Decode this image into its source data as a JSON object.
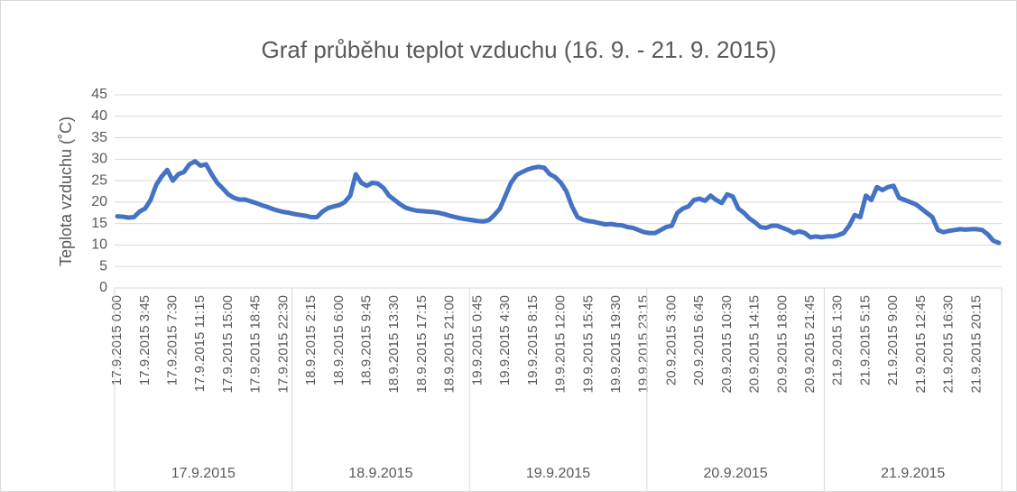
{
  "chart_data": {
    "type": "line",
    "title": "Graf průběhu teplot vzduchu (16. 9. - 21. 9. 2015)",
    "y_label": "Teplota vzduchu (˚C)",
    "ylim": [
      0,
      45
    ],
    "yticks": [
      0,
      5,
      10,
      15,
      20,
      25,
      30,
      35,
      40,
      45
    ],
    "grid": true,
    "x_groups": [
      "17.9.2015",
      "18.9.2015",
      "19.9.2015",
      "20.9.2015",
      "21.9.2015"
    ],
    "categories": [
      "17.9.2015 0:00",
      null,
      null,
      null,
      null,
      "17.9.2015 3:45",
      null,
      null,
      null,
      null,
      "17.9.2015 7:30",
      null,
      null,
      null,
      null,
      "17.9.2015 11:15",
      null,
      null,
      null,
      null,
      "17.9.2015 15:00",
      null,
      null,
      null,
      null,
      "17.9.2015 18:45",
      null,
      null,
      null,
      null,
      "17.9.2015 22:30",
      null,
      null,
      null,
      null,
      "18.9.2015 2:15",
      null,
      null,
      null,
      null,
      "18.9.2015 6:00",
      null,
      null,
      null,
      null,
      "18.9.2015 9:45",
      null,
      null,
      null,
      null,
      "18.9.2015 13:30",
      null,
      null,
      null,
      null,
      "18.9.2015 17:15",
      null,
      null,
      null,
      null,
      "18.9.2015 21:00",
      null,
      null,
      null,
      null,
      "19.9.2015 0:45",
      null,
      null,
      null,
      null,
      "19.9.2015 4:30",
      null,
      null,
      null,
      null,
      "19.9.2015 8:15",
      null,
      null,
      null,
      null,
      "19.9.2015 12:00",
      null,
      null,
      null,
      null,
      "19.9.2015 15:45",
      null,
      null,
      null,
      null,
      "19.9.2015 19:30",
      null,
      null,
      null,
      null,
      "19.9.2015 23:15",
      null,
      null,
      null,
      null,
      "20.9.2015 3:00",
      null,
      null,
      null,
      null,
      "20.9.2015 6:45",
      null,
      null,
      null,
      null,
      "20.9.2015 10:30",
      null,
      null,
      null,
      null,
      "20.9.2015 14:15",
      null,
      null,
      null,
      null,
      "20.9.2015 18:00",
      null,
      null,
      null,
      null,
      "20.9.2015 21:45",
      null,
      null,
      null,
      null,
      "21.9.2015 1:30",
      null,
      null,
      null,
      null,
      "21.9.2015 5:15",
      null,
      null,
      null,
      null,
      "21.9.2015 9:00",
      null,
      null,
      null,
      null,
      "21.9.2015 12:45",
      null,
      null,
      null,
      null,
      "21.9.2015 16:30",
      null,
      null,
      null,
      null,
      "21.9.2015 20:15",
      null,
      null,
      null,
      null
    ],
    "series": [
      {
        "name": "Teplota vzduchu",
        "color": "#4472c4",
        "values": [
          16.7,
          16.6,
          16.4,
          16.5,
          17.8,
          18.5,
          20.5,
          24,
          26,
          27.5,
          25,
          26.5,
          27,
          28.8,
          29.5,
          28.5,
          28.8,
          26.5,
          24.5,
          23.2,
          21.8,
          21,
          20.6,
          20.6,
          20.2,
          19.8,
          19.3,
          18.9,
          18.4,
          18,
          17.7,
          17.5,
          17.2,
          17,
          16.8,
          16.5,
          16.5,
          17.8,
          18.6,
          19,
          19.3,
          20,
          21.5,
          26.5,
          24.5,
          23.8,
          24.5,
          24.3,
          23.3,
          21.5,
          20.5,
          19.5,
          18.7,
          18.3,
          18,
          17.9,
          17.8,
          17.7,
          17.5,
          17.2,
          16.8,
          16.5,
          16.2,
          16,
          15.8,
          15.6,
          15.5,
          15.8,
          17,
          18.5,
          21.5,
          24.5,
          26.3,
          27,
          27.6,
          28,
          28.2,
          28,
          26.5,
          25.8,
          24.5,
          22.5,
          19,
          16.5,
          15.9,
          15.6,
          15.4,
          15.1,
          14.8,
          14.9,
          14.7,
          14.6,
          14.2,
          14,
          13.5,
          13,
          12.8,
          12.8,
          13.5,
          14.2,
          14.5,
          17.5,
          18.5,
          19,
          20.5,
          20.8,
          20.3,
          21.5,
          20.5,
          19.8,
          21.8,
          21.3,
          18.5,
          17.5,
          16.2,
          15.3,
          14.2,
          14,
          14.5,
          14.5,
          14,
          13.5,
          12.8,
          13.2,
          12.8,
          11.8,
          12,
          11.8,
          12,
          12,
          12.3,
          12.8,
          14.5,
          17,
          16.5,
          21.5,
          20.5,
          23.5,
          22.8,
          23.5,
          23.8,
          21,
          20.5,
          20,
          19.5,
          18.5,
          17.5,
          16.5,
          13.5,
          13,
          13.3,
          13.5,
          13.7,
          13.6,
          13.7,
          13.7,
          13.5,
          12.5,
          11,
          10.5
        ]
      }
    ]
  }
}
